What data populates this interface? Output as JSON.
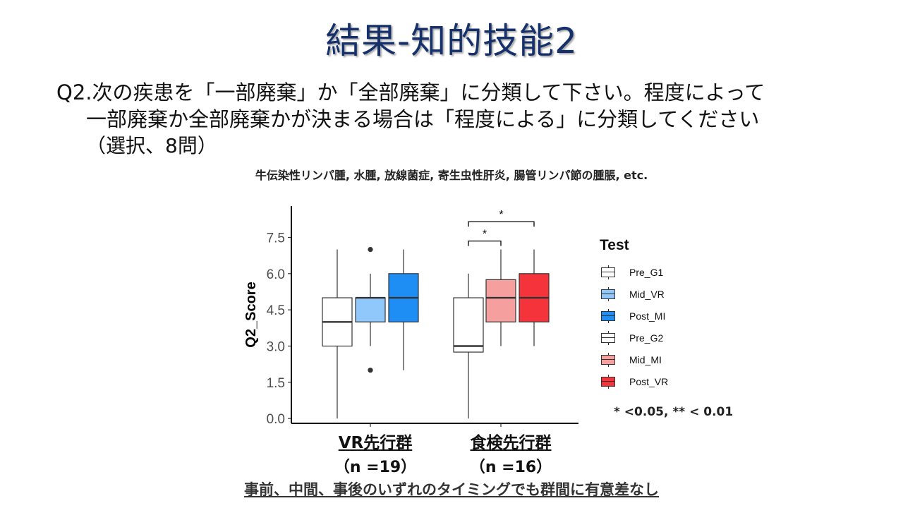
{
  "slide": {
    "title": "結果-知的技能2",
    "question_lines": [
      "Q2.次の疾患を「一部廃棄」か「全部廃棄」に分類して下さい。程度によって",
      "一部廃棄か全部廃棄かが決まる場合は「程度による」に分類してください",
      "（選択、8問）"
    ],
    "examples": "牛伝染性リンパ腫, 水腫, 放線菌症, 寄生虫性肝炎, 腸管リンパ節の腫脹, etc.",
    "significance_note": "* <0.05,  ** < 0.01",
    "footer": "事前、中間、事後のいずれのタイミングでも群間に有意差なし"
  },
  "chart_data": {
    "type": "box",
    "ylabel": "Q2_Score",
    "ylim": [
      -0.2,
      8.8
    ],
    "yticks": [
      "0.0",
      "1.5",
      "3.0",
      "4.5",
      "6.0",
      "7.5"
    ],
    "groups": [
      {
        "name": "VR先行群",
        "n_label": "（n =19）"
      },
      {
        "name": "食検先行群",
        "n_label": "（n =16）"
      }
    ],
    "legend_title": "Test",
    "series": [
      {
        "name": "Pre_G1",
        "group": 0,
        "color": "#ffffff",
        "min": 0,
        "q1": 3,
        "median": 4,
        "q3": 5,
        "max": 7,
        "outliers": []
      },
      {
        "name": "Mid_VR",
        "group": 0,
        "color": "#90c8fb",
        "min": 3,
        "q1": 4,
        "median": 5,
        "q3": 5,
        "max": 6,
        "outliers": [
          7,
          2
        ]
      },
      {
        "name": "Post_MI",
        "group": 0,
        "color": "#1e8ef5",
        "min": 2,
        "q1": 4,
        "median": 5,
        "q3": 6,
        "max": 7,
        "outliers": []
      },
      {
        "name": "Pre_G2",
        "group": 1,
        "color": "#ffffff",
        "min": 0,
        "q1": 2.75,
        "median": 3,
        "q3": 5,
        "max": 6,
        "outliers": []
      },
      {
        "name": "Mid_MI",
        "group": 1,
        "color": "#f59f9f",
        "min": 3,
        "q1": 4,
        "median": 5,
        "q3": 5.75,
        "max": 7,
        "outliers": []
      },
      {
        "name": "Post_VR",
        "group": 1,
        "color": "#f5333a",
        "min": 3,
        "q1": 4,
        "median": 5,
        "q3": 6,
        "max": 7,
        "outliers": []
      }
    ],
    "significance": [
      {
        "from": "Pre_G2",
        "to": "Mid_MI",
        "label": "*"
      },
      {
        "from": "Pre_G2",
        "to": "Post_VR",
        "label": "*"
      }
    ]
  }
}
